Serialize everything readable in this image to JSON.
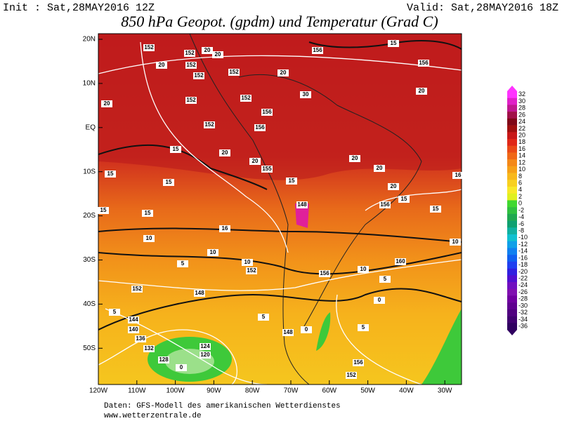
{
  "header": {
    "init": "Init : Sat,28MAY2016 12Z",
    "valid": "Valid: Sat,28MAY2016 18Z",
    "title": "850 hPa Geopot. (gpdm) und Temperatur (Grad C)"
  },
  "map": {
    "lat_labels": [
      "20N",
      "10N",
      "EQ",
      "10S",
      "20S",
      "30S",
      "40S",
      "50S"
    ],
    "lon_labels": [
      "120W",
      "110W",
      "100W",
      "90W",
      "80W",
      "70W",
      "60W",
      "50W",
      "40W",
      "30W"
    ],
    "contour_labels": [
      152,
      152,
      20,
      20,
      152,
      20,
      152,
      152,
      20,
      156,
      156,
      15,
      20,
      20,
      152,
      152,
      30,
      156,
      152,
      156,
      15,
      20,
      20,
      155,
      15,
      15,
      15,
      20,
      20,
      20,
      15,
      16,
      156,
      15,
      15,
      15,
      16,
      148,
      10,
      10,
      10,
      5,
      10,
      152,
      156,
      10,
      160,
      152,
      148,
      5,
      0,
      5,
      144,
      140,
      136,
      132,
      124,
      120,
      128,
      0,
      148,
      5,
      156,
      152,
      5,
      0
    ]
  },
  "colorbar": {
    "labels": [
      32,
      30,
      28,
      26,
      24,
      22,
      20,
      18,
      16,
      14,
      12,
      10,
      8,
      6,
      4,
      2,
      0,
      -2,
      -4,
      -6,
      -8,
      -10,
      -12,
      -14,
      -16,
      -18,
      -20,
      -22,
      -24,
      -26,
      -28,
      -30,
      -32,
      -34,
      -36
    ]
  },
  "footer": {
    "source": "Daten: GFS-Modell des amerikanischen Wetterdienstes",
    "url": "www.wetterzentrale.de"
  }
}
